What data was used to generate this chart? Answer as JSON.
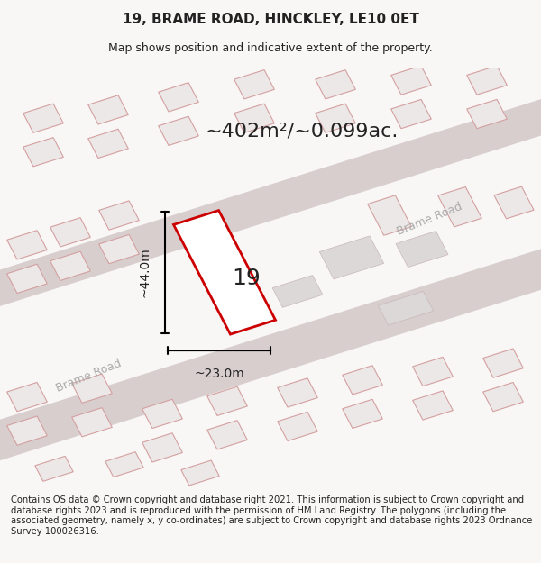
{
  "title_line1": "19, BRAME ROAD, HINCKLEY, LE10 0ET",
  "title_line2": "Map shows position and indicative extent of the property.",
  "area_label": "~402m²/~0.099ac.",
  "plot_number": "19",
  "dim_height": "~44.0m",
  "dim_width": "~23.0m",
  "road_label1": "Brame Road",
  "road_label2": "Brame Road",
  "footer_text": "Contains OS data © Crown copyright and database right 2021. This information is subject to Crown copyright and database rights 2023 and is reproduced with the permission of HM Land Registry. The polygons (including the associated geometry, namely x, y co-ordinates) are subject to Crown copyright and database rights 2023 Ordnance Survey 100026316.",
  "bg_color": "#f5f0f0",
  "map_bg": "#f9f6f6",
  "plot_color": "#cc0000",
  "plot_fill": "#ffffff",
  "road_color": "#e8d8d8",
  "building_color_light": "#e8e0e0",
  "building_color_dark": "#d0c8c8",
  "text_color": "#222222",
  "road_text_color": "#aaaaaa"
}
